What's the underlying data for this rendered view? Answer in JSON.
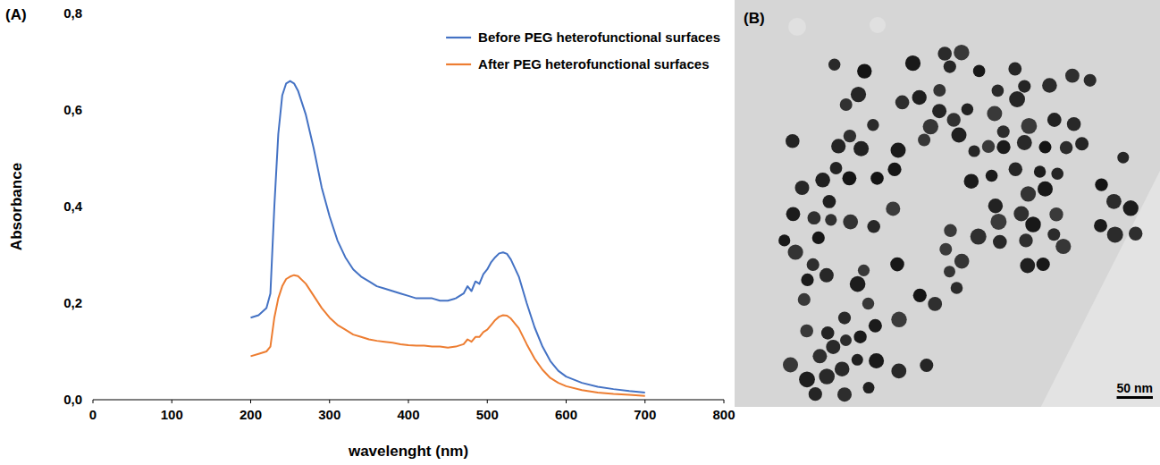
{
  "chart_data": {
    "type": "line",
    "panel_label": "(A)",
    "x_label": "wavelenght (nm)",
    "y_label": "Absorbance",
    "xlim": [
      0,
      800
    ],
    "xticks": [
      0,
      100,
      200,
      300,
      400,
      500,
      600,
      700,
      800
    ],
    "ylim": [
      0,
      0.8
    ],
    "yticks": [
      {
        "value": 0,
        "label": "0,0"
      },
      {
        "value": 0.2,
        "label": "0,2"
      },
      {
        "value": 0.4,
        "label": "0,4"
      },
      {
        "value": 0.6,
        "label": "0,6"
      },
      {
        "value": 0.8,
        "label": "0,8"
      }
    ],
    "grid": false,
    "legend": "upper right",
    "x": [
      200,
      210,
      220,
      225,
      230,
      235,
      240,
      245,
      250,
      255,
      260,
      270,
      280,
      290,
      300,
      310,
      320,
      330,
      340,
      350,
      360,
      370,
      380,
      390,
      400,
      410,
      420,
      430,
      440,
      450,
      460,
      470,
      475,
      480,
      485,
      490,
      495,
      500,
      505,
      510,
      515,
      520,
      525,
      530,
      540,
      550,
      560,
      570,
      580,
      590,
      600,
      620,
      640,
      660,
      680,
      700
    ],
    "series": [
      {
        "name": "Before PEG heterofunctional surfaces",
        "color": "#4472c4",
        "values": [
          0.17,
          0.175,
          0.19,
          0.22,
          0.4,
          0.55,
          0.63,
          0.655,
          0.66,
          0.655,
          0.64,
          0.59,
          0.52,
          0.44,
          0.38,
          0.33,
          0.295,
          0.27,
          0.255,
          0.245,
          0.235,
          0.23,
          0.225,
          0.22,
          0.215,
          0.21,
          0.21,
          0.21,
          0.205,
          0.205,
          0.21,
          0.22,
          0.235,
          0.225,
          0.245,
          0.24,
          0.26,
          0.27,
          0.285,
          0.295,
          0.303,
          0.305,
          0.302,
          0.29,
          0.255,
          0.2,
          0.15,
          0.11,
          0.08,
          0.06,
          0.048,
          0.035,
          0.027,
          0.022,
          0.018,
          0.015
        ]
      },
      {
        "name": "After PEG heterofunctional surfaces",
        "color": "#ed7d31",
        "values": [
          0.09,
          0.095,
          0.1,
          0.11,
          0.17,
          0.21,
          0.235,
          0.25,
          0.255,
          0.258,
          0.256,
          0.24,
          0.215,
          0.19,
          0.17,
          0.155,
          0.145,
          0.135,
          0.13,
          0.125,
          0.122,
          0.12,
          0.118,
          0.115,
          0.113,
          0.112,
          0.112,
          0.11,
          0.11,
          0.108,
          0.11,
          0.115,
          0.125,
          0.12,
          0.13,
          0.13,
          0.14,
          0.145,
          0.155,
          0.165,
          0.172,
          0.175,
          0.174,
          0.168,
          0.148,
          0.115,
          0.085,
          0.062,
          0.045,
          0.035,
          0.028,
          0.02,
          0.015,
          0.012,
          0.01,
          0.008
        ]
      }
    ]
  },
  "image": {
    "panel_label": "(B)",
    "scale_bar": "50 nm"
  }
}
